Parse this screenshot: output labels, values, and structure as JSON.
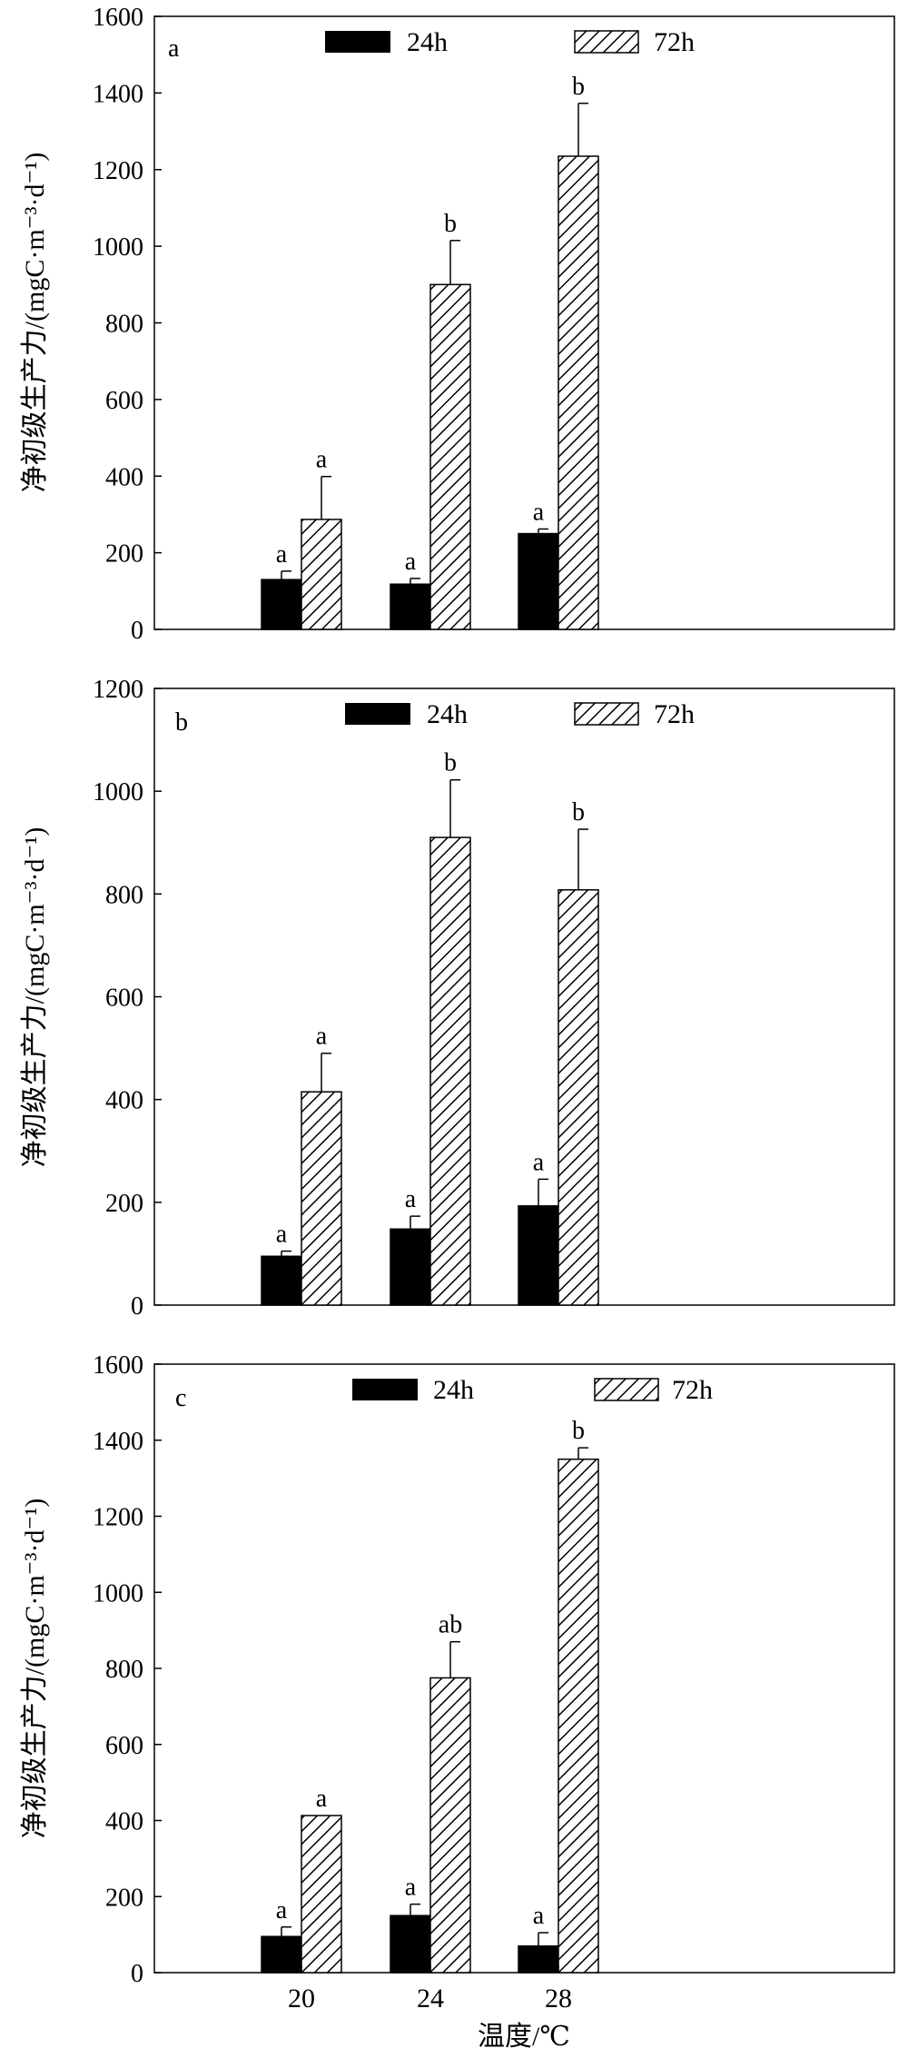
{
  "chart_data": [
    {
      "type": "bar",
      "panel_label": "a",
      "categories": [
        "20",
        "24",
        "28"
      ],
      "ylabel": "净初级生产力/(mgC·m⁻³·d⁻¹)",
      "ylim": [
        0,
        1600
      ],
      "yticks": [
        0,
        200,
        400,
        600,
        800,
        1000,
        1200,
        1400,
        1600
      ],
      "legend_position": "top",
      "series": [
        {
          "name": "24h",
          "values": [
            130,
            118,
            250
          ],
          "errors": [
            22,
            15,
            12
          ],
          "letters": [
            "a",
            "a",
            "a"
          ],
          "fill": "#000000"
        },
        {
          "name": "72h",
          "values": [
            287,
            900,
            1235
          ],
          "errors": [
            112,
            115,
            138
          ],
          "letters": [
            "a",
            "b",
            "b"
          ],
          "fill": "hatch"
        }
      ]
    },
    {
      "type": "bar",
      "panel_label": "b",
      "categories": [
        "20",
        "24",
        "28"
      ],
      "ylabel": "净初级生产力/(mgC·m⁻³·d⁻¹)",
      "ylim": [
        0,
        1200
      ],
      "yticks": [
        0,
        200,
        400,
        600,
        800,
        1000,
        1200
      ],
      "legend_position": "top",
      "series": [
        {
          "name": "24h",
          "values": [
            95,
            148,
            193
          ],
          "errors": [
            10,
            25,
            52
          ],
          "letters": [
            "a",
            "a",
            "a"
          ],
          "fill": "#000000"
        },
        {
          "name": "72h",
          "values": [
            415,
            910,
            808
          ],
          "errors": [
            75,
            112,
            118
          ],
          "letters": [
            "a",
            "b",
            "b"
          ],
          "fill": "hatch"
        }
      ]
    },
    {
      "type": "bar",
      "panel_label": "c",
      "categories": [
        "20",
        "24",
        "28"
      ],
      "xlabel": "温度/℃",
      "ylabel": "净初级生产力/(mgC·m⁻³·d⁻¹)",
      "ylim": [
        0,
        1600
      ],
      "yticks": [
        0,
        200,
        400,
        600,
        800,
        1000,
        1200,
        1400,
        1600
      ],
      "legend_position": "top",
      "series": [
        {
          "name": "24h",
          "values": [
            95,
            150,
            70
          ],
          "errors": [
            25,
            30,
            35
          ],
          "letters": [
            "a",
            "a",
            "a"
          ],
          "fill": "#000000"
        },
        {
          "name": "72h",
          "values": [
            413,
            775,
            1350
          ],
          "errors": [
            0,
            95,
            30
          ],
          "letters": [
            "a",
            "ab",
            "b"
          ],
          "fill": "hatch"
        }
      ]
    }
  ]
}
